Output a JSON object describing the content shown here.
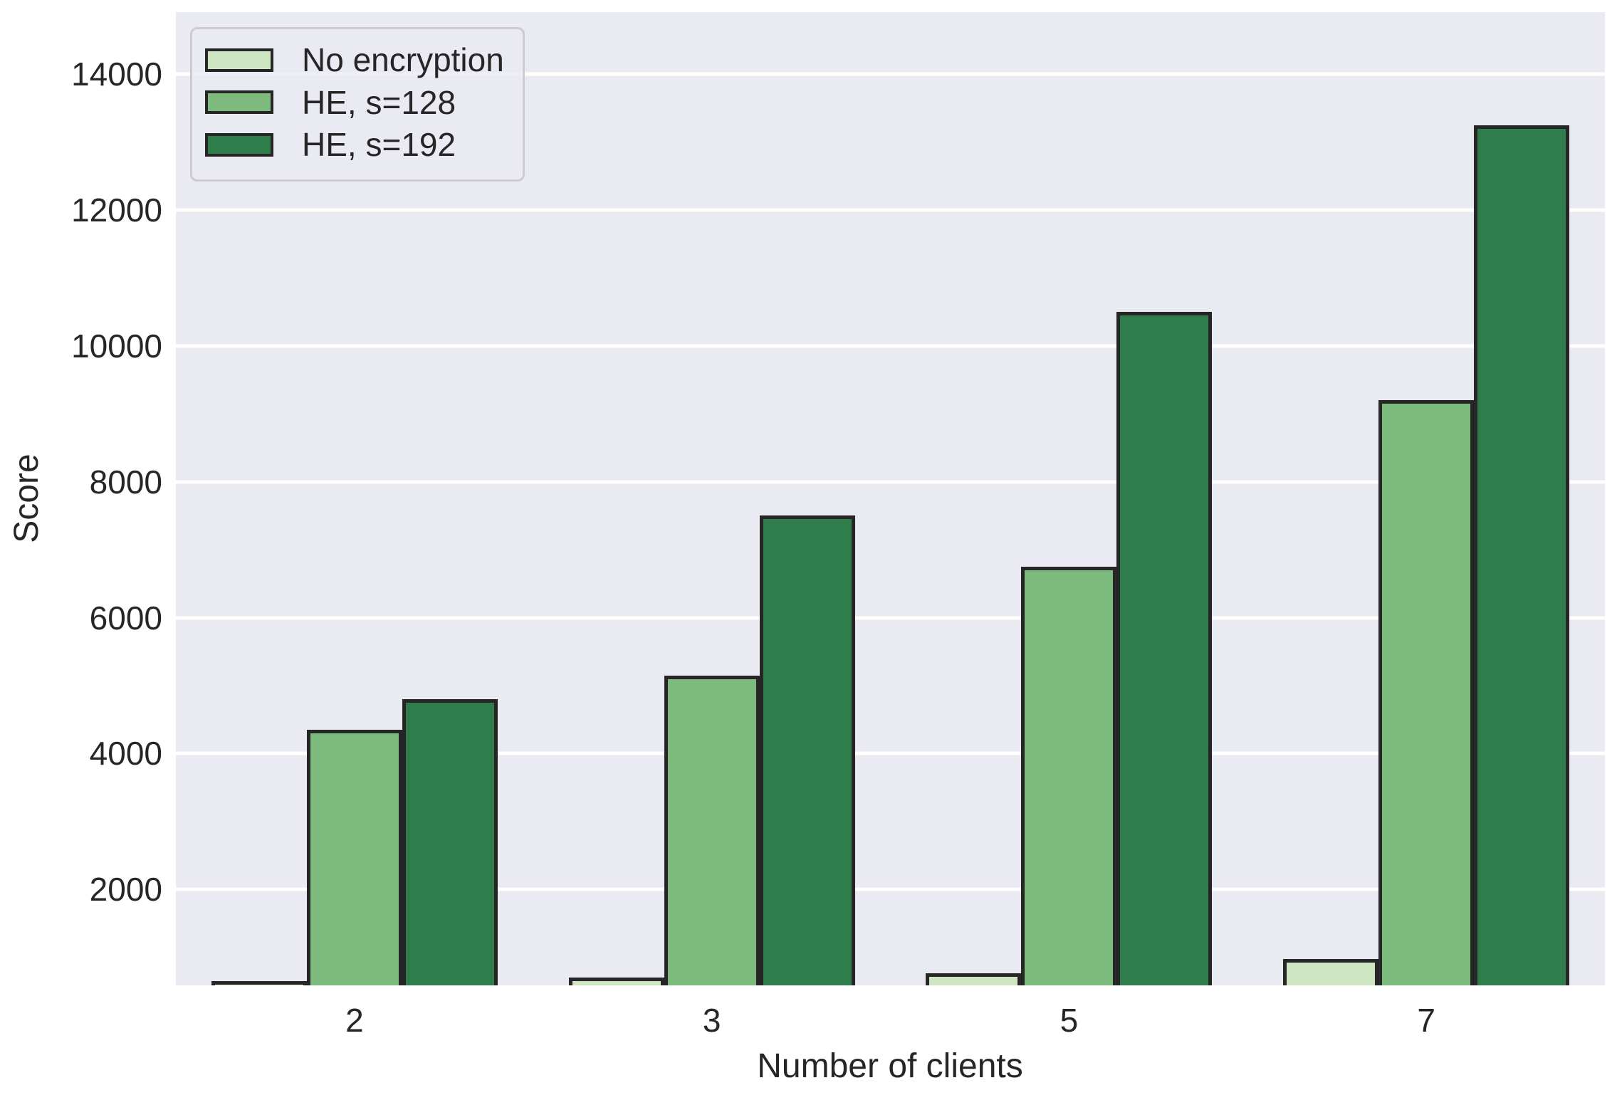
{
  "figure": {
    "background_color": "#ffffff",
    "plot_background_color": "#eaeaf2",
    "grid_color": "#ffffff",
    "bar_edge_color": "#262626",
    "text_color": "#262626",
    "legend_face_color": "rgba(234,234,242,0.8)",
    "legend_border_color": "#cccccc"
  },
  "chart_data": {
    "type": "bar",
    "title": "",
    "xlabel": "Number of clients",
    "ylabel": "Score",
    "categories": [
      "2",
      "3",
      "5",
      "7"
    ],
    "series": [
      {
        "name": "No encryption",
        "color": "#cee5c2",
        "values": [
          650,
          700,
          760,
          980
        ]
      },
      {
        "name": "HE, s=128",
        "color": "#7cba7e",
        "values": [
          4350,
          5150,
          6750,
          9200
        ]
      },
      {
        "name": "HE, s=192",
        "color": "#2e7d4a",
        "values": [
          4800,
          7500,
          10500,
          13250
        ]
      }
    ],
    "y_ticks": [
      2000,
      4000,
      6000,
      8000,
      10000,
      12000,
      14000
    ],
    "ylim": [
      587,
      14916
    ],
    "grid": true,
    "gridlines_horizontal_only": true,
    "legend_position": "upper-left",
    "bars_clipped_at_axis_bottom": true
  }
}
